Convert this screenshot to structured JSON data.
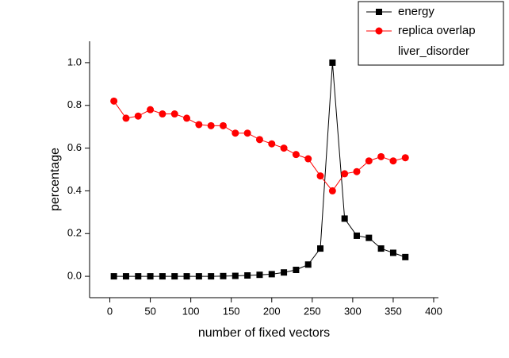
{
  "chart_data": {
    "type": "line",
    "x_label": "number of fixed vectors",
    "y_label": "percentage",
    "legend_title": "liver_disorder",
    "legend_position": "upper right",
    "xlim": [
      -25,
      400
    ],
    "xticks": [
      0,
      50,
      100,
      150,
      200,
      250,
      300,
      350,
      400
    ],
    "ylim": [
      -0.1,
      1.1
    ],
    "yticks": [
      {
        "value": 0,
        "label": "0.0"
      },
      0.2,
      0.4,
      0.6,
      0.8,
      {
        "value": 1,
        "label": "1.0"
      }
    ],
    "x": [
      5,
      20,
      35,
      50,
      65,
      80,
      95,
      110,
      125,
      140,
      155,
      170,
      185,
      200,
      215,
      230,
      245,
      260,
      275,
      290,
      305,
      320,
      335,
      350,
      365
    ],
    "series": [
      {
        "name": "energy",
        "color": "#000000",
        "marker": "square",
        "values": [
          0,
          0,
          0,
          0,
          0,
          0,
          0,
          0,
          0,
          0.001,
          0.002,
          0.004,
          0.007,
          0.01,
          0.018,
          0.03,
          0.055,
          0.13,
          1.0,
          0.27,
          0.19,
          0.18,
          0.13,
          0.11,
          0.09
        ]
      },
      {
        "name": "replica overlap",
        "color": "#ff0000",
        "marker": "circle",
        "values": [
          0.82,
          0.74,
          0.75,
          0.78,
          0.76,
          0.76,
          0.74,
          0.71,
          0.705,
          0.705,
          0.67,
          0.67,
          0.64,
          0.62,
          0.6,
          0.57,
          0.55,
          0.47,
          0.4,
          0.48,
          0.49,
          0.54,
          0.56,
          0.54,
          0.555
        ]
      }
    ]
  }
}
